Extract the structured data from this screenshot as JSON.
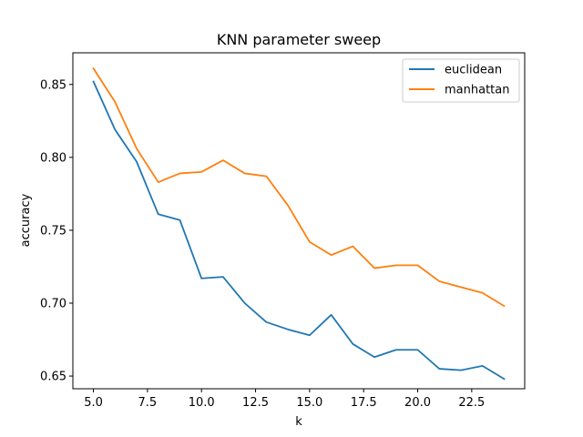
{
  "chart_data": {
    "type": "line",
    "title": "KNN parameter sweep",
    "xlabel": "k",
    "ylabel": "accuracy",
    "x": [
      5,
      6,
      7,
      8,
      9,
      10,
      11,
      12,
      13,
      14,
      15,
      16,
      17,
      18,
      19,
      20,
      21,
      22,
      23,
      24
    ],
    "series": [
      {
        "name": "euclidean",
        "color": "#1f77b4",
        "values": [
          0.852,
          0.819,
          0.797,
          0.761,
          0.757,
          0.717,
          0.718,
          0.7,
          0.687,
          0.682,
          0.678,
          0.692,
          0.672,
          0.663,
          0.668,
          0.668,
          0.655,
          0.654,
          0.657,
          0.648
        ]
      },
      {
        "name": "manhattan",
        "color": "#ff7f0e",
        "values": [
          0.861,
          0.838,
          0.806,
          0.783,
          0.789,
          0.79,
          0.798,
          0.789,
          0.787,
          0.767,
          0.742,
          0.733,
          0.739,
          0.724,
          0.726,
          0.726,
          0.715,
          0.711,
          0.707,
          0.698
        ]
      }
    ],
    "xlim": [
      4.05,
      24.95
    ],
    "ylim": [
      0.6413,
      0.8717
    ],
    "xticks": [
      5.0,
      7.5,
      10.0,
      12.5,
      15.0,
      17.5,
      20.0,
      22.5
    ],
    "xtick_labels": [
      "5.0",
      "7.5",
      "10.0",
      "12.5",
      "15.0",
      "17.5",
      "20.0",
      "22.5"
    ],
    "yticks": [
      0.65,
      0.7,
      0.75,
      0.8,
      0.85
    ],
    "ytick_labels": [
      "0.65",
      "0.70",
      "0.75",
      "0.80",
      "0.85"
    ],
    "grid": false,
    "legend": "top-right"
  }
}
